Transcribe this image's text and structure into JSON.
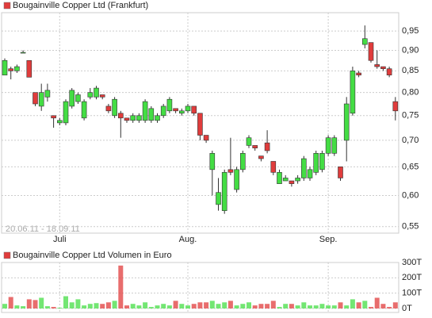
{
  "chart_data": [
    {
      "type": "candlestick",
      "title": "Bougainville Copper Ltd (Frankfurt)",
      "date_range": "20.06.11 - 18.09.11",
      "categories": [
        null,
        null,
        null,
        null,
        null,
        null,
        null,
        null,
        null,
        "Juli",
        null,
        null,
        null,
        null,
        null,
        null,
        null,
        null,
        null,
        null,
        null,
        null,
        null,
        null,
        null,
        null,
        null,
        null,
        null,
        null,
        "Aug.",
        null,
        null,
        null,
        null,
        null,
        null,
        null,
        null,
        null,
        null,
        null,
        null,
        null,
        null,
        null,
        null,
        null,
        null,
        null,
        null,
        null,
        null,
        "Sep.",
        null,
        null,
        null,
        null,
        null,
        null,
        null,
        null,
        null,
        null,
        null
      ],
      "open": [
        0.84,
        0.855,
        0.85,
        0.895,
        0.875,
        0.8,
        0.77,
        0.79,
        0.75,
        0.735,
        0.735,
        0.77,
        0.78,
        0.745,
        0.79,
        0.79,
        0.795,
        0.77,
        0.75,
        0.755,
        0.745,
        0.74,
        0.74,
        0.74,
        0.74,
        0.74,
        0.75,
        0.76,
        0.765,
        0.755,
        0.76,
        0.77,
        0.755,
        0.71,
        0.645,
        0.585,
        0.575,
        0.645,
        0.61,
        0.645,
        0.69,
        0.69,
        0.67,
        0.695,
        0.66,
        0.62,
        0.625,
        0.625,
        0.625,
        0.63,
        0.63,
        0.64,
        0.645,
        0.675,
        0.675,
        0.65,
        0.7,
        0.755,
        0.845,
        0.915,
        0.92,
        0.865,
        0.86,
        0.855,
        0.78
      ],
      "high": [
        0.88,
        0.86,
        0.865,
        0.9,
        0.875,
        0.8,
        0.82,
        0.82,
        0.75,
        0.745,
        0.785,
        0.81,
        0.8,
        0.785,
        0.81,
        0.815,
        0.795,
        0.775,
        0.79,
        0.76,
        0.745,
        0.755,
        0.755,
        0.785,
        0.77,
        0.755,
        0.775,
        0.79,
        0.765,
        0.765,
        0.775,
        0.77,
        0.755,
        0.71,
        0.68,
        0.63,
        0.645,
        0.705,
        0.65,
        0.68,
        0.71,
        0.69,
        0.67,
        0.72,
        0.66,
        0.645,
        0.635,
        0.625,
        0.635,
        0.67,
        0.65,
        0.68,
        0.68,
        0.71,
        0.71,
        0.65,
        0.79,
        0.86,
        0.85,
        0.965,
        0.92,
        0.9,
        0.86,
        0.86,
        0.79
      ],
      "low": [
        0.84,
        0.83,
        0.845,
        0.895,
        0.835,
        0.77,
        0.76,
        0.78,
        0.725,
        0.73,
        0.73,
        0.765,
        0.775,
        0.74,
        0.785,
        0.785,
        0.785,
        0.755,
        0.745,
        0.705,
        0.735,
        0.735,
        0.735,
        0.735,
        0.735,
        0.735,
        0.745,
        0.755,
        0.755,
        0.75,
        0.755,
        0.75,
        0.7,
        0.695,
        0.6,
        0.575,
        0.57,
        0.635,
        0.605,
        0.64,
        0.685,
        0.68,
        0.66,
        0.675,
        0.635,
        0.62,
        0.625,
        0.615,
        0.62,
        0.625,
        0.625,
        0.635,
        0.64,
        0.67,
        0.67,
        0.625,
        0.66,
        0.75,
        0.835,
        0.905,
        0.87,
        0.855,
        0.85,
        0.835,
        0.74
      ],
      "close": [
        0.875,
        0.85,
        0.86,
        0.895,
        0.835,
        0.775,
        0.8,
        0.805,
        0.745,
        0.74,
        0.78,
        0.805,
        0.795,
        0.78,
        0.8,
        0.81,
        0.79,
        0.76,
        0.785,
        0.745,
        0.74,
        0.75,
        0.75,
        0.78,
        0.765,
        0.75,
        0.77,
        0.785,
        0.76,
        0.76,
        0.77,
        0.755,
        0.71,
        0.7,
        0.675,
        0.605,
        0.64,
        0.64,
        0.645,
        0.675,
        0.705,
        0.685,
        0.665,
        0.68,
        0.64,
        0.64,
        0.63,
        0.62,
        0.63,
        0.665,
        0.645,
        0.675,
        0.675,
        0.705,
        0.705,
        0.63,
        0.775,
        0.85,
        0.84,
        0.93,
        0.875,
        0.86,
        0.855,
        0.84,
        0.76
      ],
      "up_color": "#44dd44",
      "down_color": "#e03c3c",
      "log_scale": true,
      "ylim": [
        0.54,
        1.0
      ],
      "yticks": [
        {
          "value": 0.55,
          "label": "0,55"
        },
        {
          "value": 0.6,
          "label": "0,60"
        },
        {
          "value": 0.65,
          "label": "0,65"
        },
        {
          "value": 0.7,
          "label": "0,70"
        },
        {
          "value": 0.75,
          "label": "0,75"
        },
        {
          "value": 0.8,
          "label": "0,80"
        },
        {
          "value": 0.85,
          "label": "0,85"
        },
        {
          "value": 0.9,
          "label": "0,90"
        },
        {
          "value": 0.95,
          "label": "0,95"
        }
      ],
      "grid": true
    },
    {
      "type": "bar",
      "title": "Bougainville Copper Ltd Volumen in Euro",
      "legend_color": "#e03c3c",
      "values": [
        30000,
        75000,
        20000,
        15000,
        60000,
        55000,
        70000,
        15000,
        10000,
        5000,
        80000,
        40000,
        60000,
        20000,
        30000,
        35000,
        30000,
        40000,
        50000,
        280000,
        20000,
        30000,
        20000,
        40000,
        10000,
        20000,
        30000,
        20000,
        50000,
        30000,
        20000,
        30000,
        40000,
        40000,
        50000,
        30000,
        40000,
        50000,
        20000,
        30000,
        40000,
        20000,
        30000,
        30000,
        50000,
        10000,
        30000,
        30000,
        20000,
        40000,
        20000,
        20000,
        30000,
        20000,
        20000,
        40000,
        20000,
        60000,
        40000,
        50000,
        10000,
        70000,
        30000,
        10000,
        40000
      ],
      "ylim": [
        0,
        300000
      ],
      "yticks": [
        {
          "value": 0,
          "label": "0T"
        },
        {
          "value": 100000,
          "label": "100T"
        },
        {
          "value": 200000,
          "label": "200T"
        },
        {
          "value": 300000,
          "label": "300T"
        }
      ],
      "grid": true
    }
  ]
}
